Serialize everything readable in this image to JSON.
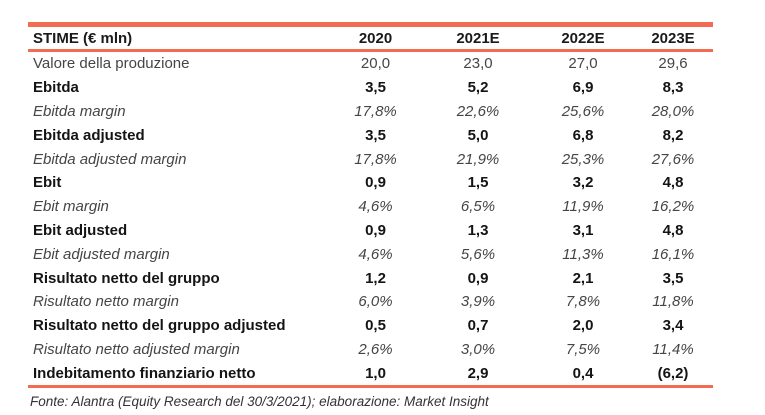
{
  "colors": {
    "accent_line": "#F26B52"
  },
  "table": {
    "header": {
      "label": "STIME (€ mln)",
      "cols": [
        "2020",
        "2021E",
        "2022E",
        "2023E"
      ]
    },
    "rows": [
      {
        "label": "Valore della produzione",
        "style": "regular",
        "values": [
          "20,0",
          "23,0",
          "27,0",
          "29,6"
        ]
      },
      {
        "label": "Ebitda",
        "style": "bold",
        "values": [
          "3,5",
          "5,2",
          "6,9",
          "8,3"
        ]
      },
      {
        "label": "Ebitda margin",
        "style": "italic",
        "values": [
          "17,8%",
          "22,6%",
          "25,6%",
          "28,0%"
        ]
      },
      {
        "label": "Ebitda adjusted",
        "style": "bold",
        "values": [
          "3,5",
          "5,0",
          "6,8",
          "8,2"
        ]
      },
      {
        "label": "Ebitda adjusted margin",
        "style": "italic",
        "values": [
          "17,8%",
          "21,9%",
          "25,3%",
          "27,6%"
        ]
      },
      {
        "label": "Ebit",
        "style": "bold",
        "values": [
          "0,9",
          "1,5",
          "3,2",
          "4,8"
        ]
      },
      {
        "label": "Ebit margin",
        "style": "italic",
        "values": [
          "4,6%",
          "6,5%",
          "11,9%",
          "16,2%"
        ]
      },
      {
        "label": "Ebit adjusted",
        "style": "bold",
        "values": [
          "0,9",
          "1,3",
          "3,1",
          "4,8"
        ]
      },
      {
        "label": "Ebit adjusted margin",
        "style": "italic",
        "values": [
          "4,6%",
          "5,6%",
          "11,3%",
          "16,1%"
        ]
      },
      {
        "label": "Risultato netto del gruppo",
        "style": "bold",
        "values": [
          "1,2",
          "0,9",
          "2,1",
          "3,5"
        ]
      },
      {
        "label": "Risultato netto margin",
        "style": "italic",
        "values": [
          "6,0%",
          "3,9%",
          "7,8%",
          "11,8%"
        ]
      },
      {
        "label": "Risultato netto del gruppo adjusted",
        "style": "bold",
        "values": [
          "0,5",
          "0,7",
          "2,0",
          "3,4"
        ]
      },
      {
        "label": "Risultato netto adjusted margin",
        "style": "italic",
        "values": [
          "2,6%",
          "3,0%",
          "7,5%",
          "11,4%"
        ]
      },
      {
        "label": "Indebitamento finanziario netto",
        "style": "bold",
        "values": [
          "1,0",
          "2,9",
          "0,4",
          "(6,2)"
        ]
      }
    ]
  },
  "footer": {
    "source": "Fonte: Alantra (Equity Research del 30/3/2021); elaborazione: Market Insight"
  }
}
